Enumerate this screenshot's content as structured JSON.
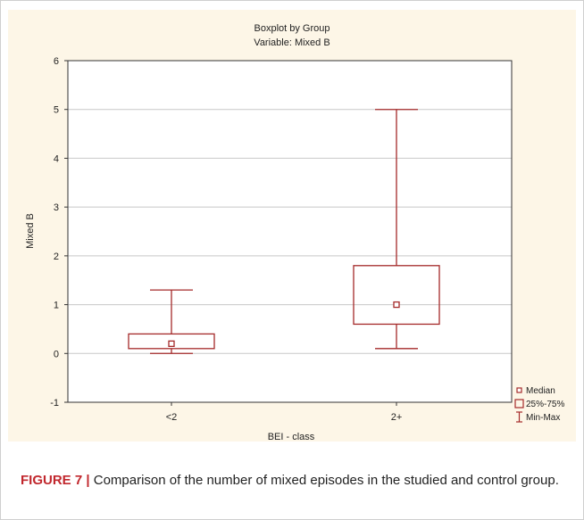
{
  "caption": {
    "label": "FIGURE 7",
    "separator": " | ",
    "text": "Comparison of the number of mixed episodes in the studied and control group."
  },
  "colors": {
    "panel_background": "#fdf6e7",
    "plot_background": "#ffffff",
    "box_color": "#a52a2a",
    "caption_label": "#c1272d"
  },
  "chart_data": {
    "type": "boxplot",
    "title": "Boxplot by Group",
    "subtitle": "Variable: Mixed B",
    "xlabel": "BEI - class",
    "ylabel": "Mixed B",
    "ylim": [
      -1,
      6
    ],
    "yticks": [
      "-1",
      "0",
      "1",
      "2",
      "3",
      "4",
      "5",
      "6"
    ],
    "grid": true,
    "legend_position": "bottom-right",
    "categories": [
      "<2",
      "2+"
    ],
    "series": [
      {
        "category": "<2",
        "min": 0,
        "q1": 0.1,
        "median": 0.2,
        "q3": 0.4,
        "max": 1.3
      },
      {
        "category": "2+",
        "min": 0.1,
        "q1": 0.6,
        "median": 1.0,
        "q3": 1.8,
        "max": 5.0
      }
    ],
    "legend": [
      "Median",
      "25%-75%",
      "Min-Max"
    ]
  }
}
